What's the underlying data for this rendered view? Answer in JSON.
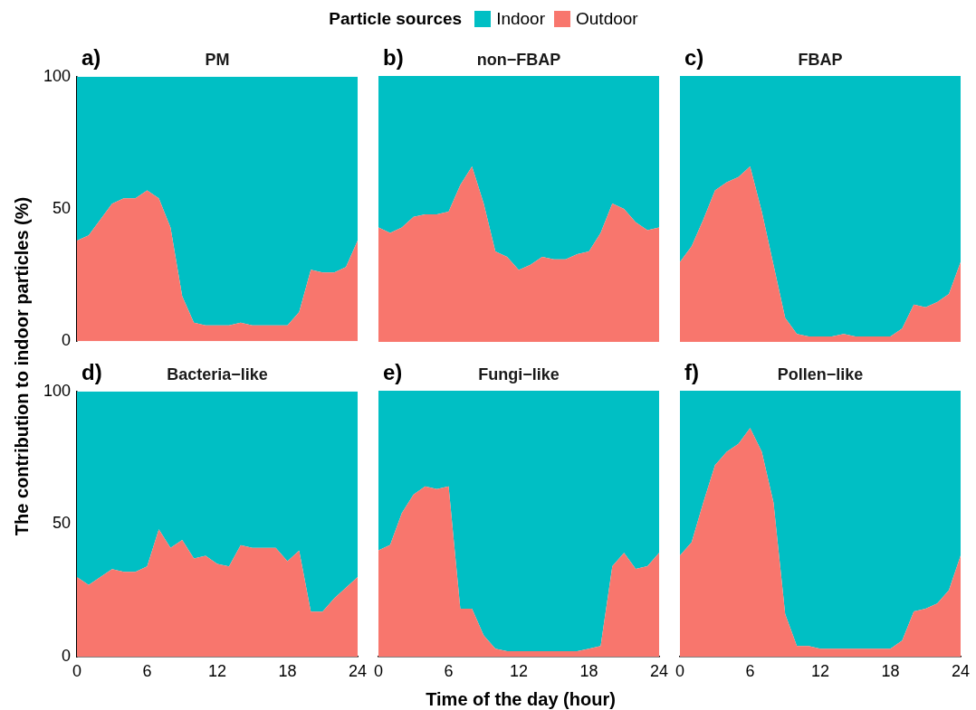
{
  "chart_data": [
    {
      "type": "area",
      "title": "PM",
      "annotations": [
        "a)"
      ],
      "ylabel": "The contribution to indoor particles (%)",
      "legend_title": "Particle sources",
      "legend": "top",
      "stacked": true,
      "tick_labels": "y",
      "xlim": [
        0,
        24
      ],
      "xticks": [
        0,
        6,
        12,
        18,
        24
      ],
      "ylim": [
        0,
        100
      ],
      "yticks": [
        0,
        50,
        100
      ],
      "x": [
        0,
        1,
        2,
        3,
        4,
        5,
        6,
        7,
        8,
        9,
        10,
        11,
        12,
        13,
        14,
        15,
        16,
        17,
        18,
        19,
        20,
        21,
        22,
        23,
        24
      ],
      "series": [
        {
          "name": "Outdoor",
          "color": "#f8766d",
          "values": [
            38,
            40,
            46,
            52,
            54,
            54,
            57,
            54,
            43,
            17,
            7,
            6,
            6,
            6,
            7,
            6,
            6,
            6,
            6,
            11,
            27,
            26,
            26,
            28,
            38
          ]
        },
        {
          "name": "Indoor",
          "color": "#00bfc4",
          "values": [
            62,
            60,
            54,
            48,
            46,
            46,
            43,
            46,
            57,
            83,
            93,
            94,
            94,
            94,
            93,
            94,
            94,
            94,
            94,
            89,
            73,
            74,
            74,
            72,
            62
          ]
        }
      ]
    },
    {
      "type": "area",
      "title": "non−FBAP",
      "annotations": [
        "b)"
      ],
      "stacked": true,
      "tick_labels": false,
      "xlim": [
        0,
        24
      ],
      "xticks": [
        0,
        6,
        12,
        18,
        24
      ],
      "ylim": [
        0,
        100
      ],
      "yticks": [
        0,
        50,
        100
      ],
      "x": [
        0,
        1,
        2,
        3,
        4,
        5,
        6,
        7,
        8,
        9,
        10,
        11,
        12,
        13,
        14,
        15,
        16,
        17,
        18,
        19,
        20,
        21,
        22,
        23,
        24
      ],
      "series": [
        {
          "color": "#f8766d",
          "values": [
            43,
            41,
            43,
            47,
            48,
            48,
            49,
            59,
            66,
            52,
            34,
            32,
            27,
            29,
            32,
            31,
            31,
            33,
            34,
            41,
            52,
            50,
            45,
            42,
            43
          ]
        },
        {
          "color": "#00bfc4",
          "values": [
            57,
            59,
            57,
            53,
            52,
            52,
            51,
            41,
            34,
            48,
            66,
            68,
            73,
            71,
            68,
            69,
            69,
            67,
            66,
            59,
            48,
            50,
            55,
            58,
            57
          ]
        }
      ]
    },
    {
      "type": "area",
      "title": "FBAP",
      "annotations": [
        "c)"
      ],
      "stacked": true,
      "tick_labels": false,
      "xlim": [
        0,
        24
      ],
      "xticks": [
        0,
        6,
        12,
        18,
        24
      ],
      "ylim": [
        0,
        100
      ],
      "yticks": [
        0,
        50,
        100
      ],
      "x": [
        0,
        1,
        2,
        3,
        4,
        5,
        6,
        7,
        8,
        9,
        10,
        11,
        12,
        13,
        14,
        15,
        16,
        17,
        18,
        19,
        20,
        21,
        22,
        23,
        24
      ],
      "series": [
        {
          "color": "#f8766d",
          "values": [
            30,
            36,
            46,
            57,
            60,
            62,
            66,
            49,
            29,
            9,
            3,
            2,
            2,
            2,
            3,
            2,
            2,
            2,
            2,
            5,
            14,
            13,
            15,
            18,
            30
          ]
        },
        {
          "color": "#00bfc4",
          "values": [
            70,
            64,
            54,
            43,
            40,
            38,
            34,
            51,
            71,
            91,
            97,
            98,
            98,
            98,
            97,
            98,
            98,
            98,
            98,
            95,
            86,
            87,
            85,
            82,
            70
          ]
        }
      ]
    },
    {
      "type": "area",
      "title": "Bacteria−like",
      "annotations": [
        "d)"
      ],
      "stacked": true,
      "xlim": [
        0,
        24
      ],
      "xticks": [
        0,
        6,
        12,
        18,
        24
      ],
      "ylim": [
        0,
        100
      ],
      "yticks": [
        0,
        50,
        100
      ],
      "x": [
        0,
        1,
        2,
        3,
        4,
        5,
        6,
        7,
        8,
        9,
        10,
        11,
        12,
        13,
        14,
        15,
        16,
        17,
        18,
        19,
        20,
        21,
        22,
        23,
        24
      ],
      "series": [
        {
          "color": "#f8766d",
          "values": [
            30,
            27,
            30,
            33,
            32,
            32,
            34,
            48,
            41,
            44,
            37,
            38,
            35,
            34,
            42,
            41,
            41,
            41,
            36,
            40,
            17,
            17,
            22,
            26,
            30
          ]
        },
        {
          "color": "#00bfc4",
          "values": [
            70,
            73,
            70,
            67,
            68,
            68,
            66,
            52,
            59,
            56,
            63,
            62,
            65,
            66,
            58,
            59,
            59,
            59,
            64,
            60,
            83,
            83,
            78,
            74,
            70
          ]
        }
      ]
    },
    {
      "type": "area",
      "title": "Fungi−like",
      "annotations": [
        "e)"
      ],
      "xlabel": "Time of the day (hour)",
      "stacked": true,
      "tick_labels": "x",
      "xlim": [
        0,
        24
      ],
      "xticks": [
        0,
        6,
        12,
        18,
        24
      ],
      "ylim": [
        0,
        100
      ],
      "yticks": [
        0,
        50,
        100
      ],
      "x": [
        0,
        1,
        2,
        3,
        4,
        5,
        6,
        7,
        8,
        9,
        10,
        11,
        12,
        13,
        14,
        15,
        16,
        17,
        18,
        19,
        20,
        21,
        22,
        23,
        24
      ],
      "series": [
        {
          "color": "#f8766d",
          "values": [
            40,
            42,
            54,
            61,
            64,
            63,
            64,
            18,
            18,
            8,
            3,
            2,
            2,
            2,
            2,
            2,
            2,
            2,
            3,
            4,
            34,
            39,
            33,
            34,
            39
          ]
        },
        {
          "color": "#00bfc4",
          "values": [
            60,
            58,
            46,
            39,
            36,
            37,
            36,
            82,
            82,
            92,
            97,
            98,
            98,
            98,
            98,
            98,
            98,
            98,
            97,
            96,
            66,
            61,
            67,
            66,
            61
          ]
        }
      ]
    },
    {
      "type": "area",
      "title": "Pollen−like",
      "annotations": [
        "f)"
      ],
      "stacked": true,
      "tick_labels": "x",
      "xlim": [
        0,
        24
      ],
      "xticks": [
        0,
        6,
        12,
        18,
        24
      ],
      "ylim": [
        0,
        100
      ],
      "yticks": [
        0,
        50,
        100
      ],
      "x": [
        0,
        1,
        2,
        3,
        4,
        5,
        6,
        7,
        8,
        9,
        10,
        11,
        12,
        13,
        14,
        15,
        16,
        17,
        18,
        19,
        20,
        21,
        22,
        23,
        24
      ],
      "series": [
        {
          "color": "#f8766d",
          "values": [
            38,
            43,
            58,
            72,
            77,
            80,
            86,
            77,
            58,
            16,
            4,
            4,
            3,
            3,
            3,
            3,
            3,
            3,
            3,
            6,
            17,
            18,
            20,
            25,
            38
          ]
        },
        {
          "color": "#00bfc4",
          "values": [
            62,
            57,
            42,
            28,
            23,
            20,
            14,
            23,
            42,
            84,
            96,
            96,
            97,
            97,
            97,
            97,
            97,
            97,
            97,
            94,
            83,
            82,
            80,
            75,
            62
          ]
        }
      ]
    }
  ]
}
